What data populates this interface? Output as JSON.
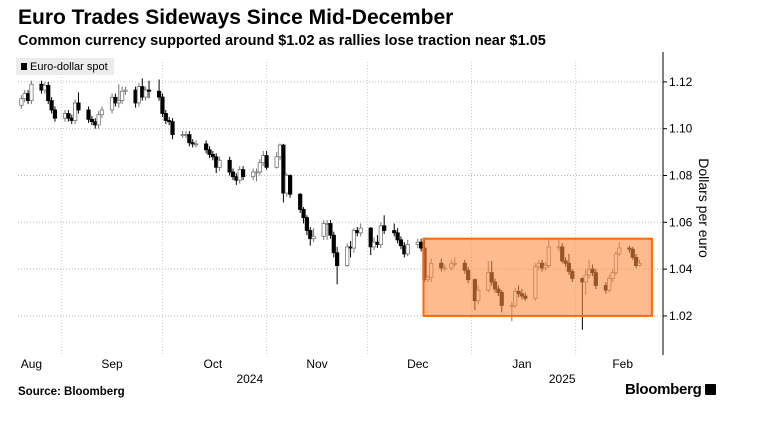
{
  "header": {
    "title": "Euro Trades Sideways Since Mid-December",
    "subtitle": "Common currency supported around $1.02 as rallies lose traction near $1.05"
  },
  "footer": {
    "source": "Source: Bloomberg",
    "logo": "Bloomberg"
  },
  "chart_data": {
    "type": "candlestick",
    "legend": {
      "label": "Euro-dollar spot",
      "placement": "top-left"
    },
    "ylabel": "Dollars per euro",
    "y_axis_side": "right",
    "ylim": [
      1.0033,
      1.1285
    ],
    "yticks": [
      "1.02",
      "1.04",
      "1.06",
      "1.08",
      "1.10",
      "1.12"
    ],
    "ytick_values": [
      1.02,
      1.04,
      1.06,
      1.08,
      1.1,
      1.12
    ],
    "xlim": [
      "2024-08-19",
      "2025-02-27"
    ],
    "xticks": [
      {
        "label": "Aug",
        "date": "2024-08-23"
      },
      {
        "label": "Sep",
        "date": "2024-09-16"
      },
      {
        "label": "Oct",
        "date": "2024-10-16"
      },
      {
        "label": "Nov",
        "date": "2024-11-16"
      },
      {
        "label": "Dec",
        "date": "2024-12-16"
      },
      {
        "label": "Jan",
        "date": "2025-01-16"
      },
      {
        "label": "Feb",
        "date": "2025-02-15"
      }
    ],
    "year_labels": [
      {
        "label": "2024",
        "date": "2024-10-27"
      },
      {
        "label": "2025",
        "date": "2025-01-28"
      }
    ],
    "month_boundaries": [
      "2024-09-01",
      "2024-10-01",
      "2024-11-01",
      "2024-12-01",
      "2025-01-01",
      "2025-02-01"
    ],
    "grid": true,
    "colors": {
      "up": "#ffffff",
      "up_outline": "#777777",
      "down": "#000000",
      "highlight_fill": "#ff8c42",
      "highlight_stroke": "#ff6a00"
    },
    "highlight_range": {
      "x": [
        "2024-12-18",
        "2025-02-24"
      ],
      "y": [
        1.02,
        1.053
      ]
    },
    "candles_fields": [
      "date",
      "open",
      "high",
      "low",
      "close"
    ],
    "candles": [
      [
        "2024-08-20",
        1.11,
        1.1143,
        1.1085,
        1.1128
      ],
      [
        "2024-08-21",
        1.1128,
        1.1165,
        1.1113,
        1.115
      ],
      [
        "2024-08-22",
        1.115,
        1.1165,
        1.1105,
        1.112
      ],
      [
        "2024-08-23",
        1.112,
        1.1205,
        1.1105,
        1.119
      ],
      [
        "2024-08-26",
        1.119,
        1.1205,
        1.115,
        1.1165
      ],
      [
        "2024-08-27",
        1.1165,
        1.12,
        1.115,
        1.1185
      ],
      [
        "2024-08-28",
        1.1185,
        1.12,
        1.1105,
        1.112
      ],
      [
        "2024-08-29",
        1.112,
        1.1135,
        1.1065,
        1.108
      ],
      [
        "2024-08-30",
        1.108,
        1.1095,
        1.103,
        1.1045
      ],
      [
        "2024-09-02",
        1.1045,
        1.108,
        1.103,
        1.1065
      ],
      [
        "2024-09-03",
        1.1065,
        1.108,
        1.103,
        1.1045
      ],
      [
        "2024-09-04",
        1.1045,
        1.106,
        1.102,
        1.1035
      ],
      [
        "2024-09-05",
        1.1035,
        1.1125,
        1.102,
        1.111
      ],
      [
        "2024-09-06",
        1.111,
        1.1155,
        1.1065,
        1.108
      ],
      [
        "2024-09-09",
        1.108,
        1.1095,
        1.1025,
        1.104
      ],
      [
        "2024-09-10",
        1.104,
        1.1055,
        1.1015,
        1.103
      ],
      [
        "2024-09-11",
        1.103,
        1.1045,
        1.1,
        1.1016
      ],
      [
        "2024-09-12",
        1.1016,
        1.1075,
        1.1,
        1.106
      ],
      [
        "2024-09-13",
        1.106,
        1.1095,
        1.1045,
        1.108
      ],
      [
        "2024-09-16",
        1.108,
        1.115,
        1.1065,
        1.1134
      ],
      [
        "2024-09-17",
        1.1134,
        1.115,
        1.1095,
        1.111
      ],
      [
        "2024-09-18",
        1.111,
        1.119,
        1.109,
        1.112
      ],
      [
        "2024-09-19",
        1.112,
        1.118,
        1.1105,
        1.116
      ],
      [
        "2024-09-20",
        1.116,
        1.118,
        1.1145,
        1.1165
      ],
      [
        "2024-09-23",
        1.1165,
        1.118,
        1.109,
        1.111
      ],
      [
        "2024-09-24",
        1.111,
        1.1195,
        1.1095,
        1.118
      ],
      [
        "2024-09-25",
        1.118,
        1.1215,
        1.112,
        1.1135
      ],
      [
        "2024-09-26",
        1.1135,
        1.118,
        1.112,
        1.1165
      ],
      [
        "2024-09-27",
        1.1165,
        1.1205,
        1.113,
        1.116
      ],
      [
        "2024-09-30",
        1.116,
        1.121,
        1.112,
        1.1135
      ],
      [
        "2024-10-01",
        1.1135,
        1.115,
        1.105,
        1.1065
      ],
      [
        "2024-10-02",
        1.1065,
        1.108,
        1.102,
        1.1035
      ],
      [
        "2024-10-03",
        1.1035,
        1.105,
        1.1015,
        1.103
      ],
      [
        "2024-10-04",
        1.103,
        1.1045,
        1.0955,
        1.0975
      ],
      [
        "2024-10-07",
        1.0975,
        1.099,
        1.096,
        1.0975
      ],
      [
        "2024-10-08",
        1.0975,
        1.099,
        1.096,
        1.0975
      ],
      [
        "2024-10-09",
        1.0975,
        1.099,
        1.0925,
        1.094
      ],
      [
        "2024-10-10",
        1.094,
        1.0955,
        1.092,
        1.0935
      ],
      [
        "2024-10-11",
        1.0935,
        1.095,
        1.092,
        1.0935
      ],
      [
        "2024-10-14",
        1.0935,
        1.095,
        1.0895,
        1.091
      ],
      [
        "2024-10-15",
        1.091,
        1.0925,
        1.0875,
        1.089
      ],
      [
        "2024-10-16",
        1.089,
        1.0905,
        1.0865,
        1.088
      ],
      [
        "2024-10-17",
        1.088,
        1.0895,
        1.081,
        1.0835
      ],
      [
        "2024-10-18",
        1.0835,
        1.088,
        1.082,
        1.0865
      ],
      [
        "2024-10-21",
        1.0865,
        1.088,
        1.08,
        1.0815
      ],
      [
        "2024-10-22",
        1.0815,
        1.083,
        1.078,
        1.0795
      ],
      [
        "2024-10-23",
        1.0795,
        1.081,
        1.076,
        1.078
      ],
      [
        "2024-10-24",
        1.078,
        1.084,
        1.0765,
        1.0825
      ],
      [
        "2024-10-25",
        1.0825,
        1.084,
        1.078,
        1.0795
      ],
      [
        "2024-10-28",
        1.0795,
        1.083,
        1.078,
        1.0815
      ],
      [
        "2024-10-29",
        1.0815,
        1.083,
        1.0775,
        1.0815
      ],
      [
        "2024-10-30",
        1.0815,
        1.087,
        1.08,
        1.0855
      ],
      [
        "2024-10-31",
        1.0855,
        1.0905,
        1.084,
        1.0885
      ],
      [
        "2024-11-01",
        1.0885,
        1.0905,
        1.0825,
        1.0835
      ],
      [
        "2024-11-04",
        1.0835,
        1.09,
        1.083,
        1.088
      ],
      [
        "2024-11-05",
        1.088,
        1.0937,
        1.0865,
        1.093
      ],
      [
        "2024-11-06",
        1.093,
        1.0935,
        1.0685,
        1.0725
      ],
      [
        "2024-11-07",
        1.0725,
        1.081,
        1.071,
        1.08
      ],
      [
        "2024-11-08",
        1.08,
        1.0805,
        1.0705,
        1.072
      ],
      [
        "2024-11-11",
        1.072,
        1.0725,
        1.064,
        1.0655
      ],
      [
        "2024-11-12",
        1.0655,
        1.0665,
        1.0595,
        1.062
      ],
      [
        "2024-11-13",
        1.062,
        1.063,
        1.0545,
        1.0565
      ],
      [
        "2024-11-14",
        1.0565,
        1.058,
        1.05,
        1.053
      ],
      [
        "2024-11-15",
        1.053,
        1.0575,
        1.0515,
        1.054
      ],
      [
        "2024-11-18",
        1.054,
        1.061,
        1.0525,
        1.0595
      ],
      [
        "2024-11-19",
        1.0595,
        1.061,
        1.0525,
        1.0595
      ],
      [
        "2024-11-20",
        1.0595,
        1.061,
        1.053,
        1.0545
      ],
      [
        "2024-11-21",
        1.0545,
        1.056,
        1.045,
        1.047
      ],
      [
        "2024-11-22",
        1.047,
        1.0495,
        1.0335,
        1.0415
      ],
      [
        "2024-11-25",
        1.0415,
        1.051,
        1.041,
        1.0495
      ],
      [
        "2024-11-26",
        1.0495,
        1.052,
        1.045,
        1.049
      ],
      [
        "2024-11-27",
        1.049,
        1.0575,
        1.047,
        1.0565
      ],
      [
        "2024-11-28",
        1.0565,
        1.058,
        1.054,
        1.0555
      ],
      [
        "2024-11-29",
        1.0555,
        1.0595,
        1.054,
        1.0575
      ],
      [
        "2024-12-02",
        1.0575,
        1.058,
        1.046,
        1.0495
      ],
      [
        "2024-12-03",
        1.0495,
        1.0535,
        1.048,
        1.0515
      ],
      [
        "2024-12-04",
        1.0515,
        1.0545,
        1.049,
        1.0505
      ],
      [
        "2024-12-05",
        1.0505,
        1.06,
        1.049,
        1.0585
      ],
      [
        "2024-12-06",
        1.0585,
        1.063,
        1.055,
        1.0565
      ],
      [
        "2024-12-09",
        1.0565,
        1.0595,
        1.054,
        1.0555
      ],
      [
        "2024-12-10",
        1.0555,
        1.0575,
        1.051,
        1.0525
      ],
      [
        "2024-12-11",
        1.0525,
        1.054,
        1.0485,
        1.05
      ],
      [
        "2024-12-12",
        1.05,
        1.0515,
        1.045,
        1.0465
      ],
      [
        "2024-12-13",
        1.0465,
        1.0525,
        1.0455,
        1.0505
      ],
      [
        "2024-12-16",
        1.0505,
        1.053,
        1.049,
        1.0515
      ],
      [
        "2024-12-17",
        1.0515,
        1.053,
        1.0475,
        1.049
      ],
      [
        "2024-12-18",
        1.049,
        1.053,
        1.0345,
        1.0355
      ],
      [
        "2024-12-19",
        1.0355,
        1.0375,
        1.0345,
        1.0365
      ],
      [
        "2024-12-20",
        1.0365,
        1.0445,
        1.0345,
        1.0425
      ],
      [
        "2024-12-23",
        1.0425,
        1.0445,
        1.039,
        1.0405
      ],
      [
        "2024-12-24",
        1.0405,
        1.042,
        1.039,
        1.0405
      ],
      [
        "2024-12-26",
        1.0405,
        1.044,
        1.0395,
        1.0423
      ],
      [
        "2024-12-27",
        1.0423,
        1.045,
        1.041,
        1.0425
      ],
      [
        "2024-12-30",
        1.0425,
        1.044,
        1.038,
        1.0395
      ],
      [
        "2024-12-31",
        1.0395,
        1.041,
        1.034,
        1.0355
      ],
      [
        "2025-01-02",
        1.0355,
        1.036,
        1.0225,
        1.0265
      ],
      [
        "2025-01-03",
        1.0265,
        1.033,
        1.025,
        1.031
      ],
      [
        "2025-01-06",
        1.031,
        1.0435,
        1.03,
        1.0385
      ],
      [
        "2025-01-07",
        1.0385,
        1.0435,
        1.033,
        1.0345
      ],
      [
        "2025-01-08",
        1.0345,
        1.036,
        1.03,
        1.0315
      ],
      [
        "2025-01-09",
        1.0315,
        1.033,
        1.0285,
        1.03
      ],
      [
        "2025-01-10",
        1.03,
        1.031,
        1.0215,
        1.0245
      ],
      [
        "2025-01-13",
        1.0245,
        1.026,
        1.0178,
        1.0245
      ],
      [
        "2025-01-14",
        1.0245,
        1.032,
        1.0235,
        1.0305
      ],
      [
        "2025-01-15",
        1.0305,
        1.033,
        1.028,
        1.0295
      ],
      [
        "2025-01-16",
        1.0295,
        1.0315,
        1.027,
        1.0285
      ],
      [
        "2025-01-17",
        1.0285,
        1.03,
        1.0265,
        1.0275
      ],
      [
        "2025-01-20",
        1.0275,
        1.0425,
        1.0265,
        1.041
      ],
      [
        "2025-01-21",
        1.041,
        1.044,
        1.0395,
        1.0425
      ],
      [
        "2025-01-22",
        1.0425,
        1.044,
        1.039,
        1.0405
      ],
      [
        "2025-01-23",
        1.0405,
        1.043,
        1.0395,
        1.0415
      ],
      [
        "2025-01-24",
        1.0415,
        1.0525,
        1.0405,
        1.0495
      ],
      [
        "2025-01-27",
        1.0495,
        1.053,
        1.0475,
        1.0495
      ],
      [
        "2025-01-28",
        1.0495,
        1.051,
        1.0425,
        1.0435
      ],
      [
        "2025-01-29",
        1.0435,
        1.045,
        1.041,
        1.0425
      ],
      [
        "2025-01-30",
        1.0425,
        1.0465,
        1.0375,
        1.039
      ],
      [
        "2025-01-31",
        1.039,
        1.04,
        1.0345,
        1.036
      ],
      [
        "2025-02-03",
        1.036,
        1.0365,
        1.0141,
        1.0345
      ],
      [
        "2025-02-04",
        1.0345,
        1.04,
        1.029,
        1.0375
      ],
      [
        "2025-02-05",
        1.0375,
        1.044,
        1.036,
        1.04
      ],
      [
        "2025-02-06",
        1.04,
        1.042,
        1.037,
        1.0385
      ],
      [
        "2025-02-07",
        1.0385,
        1.04,
        1.0315,
        1.033
      ],
      [
        "2025-02-10",
        1.033,
        1.0345,
        1.0295,
        1.031
      ],
      [
        "2025-02-11",
        1.031,
        1.0375,
        1.03,
        1.036
      ],
      [
        "2025-02-12",
        1.036,
        1.04,
        1.0345,
        1.0385
      ],
      [
        "2025-02-13",
        1.0385,
        1.0475,
        1.0375,
        1.0465
      ],
      [
        "2025-02-14",
        1.0465,
        1.0515,
        1.0455,
        1.049
      ],
      [
        "2025-02-17",
        1.049,
        1.05,
        1.047,
        1.0485
      ],
      [
        "2025-02-18",
        1.0485,
        1.0495,
        1.044,
        1.045
      ],
      [
        "2025-02-19",
        1.045,
        1.0465,
        1.0405,
        1.0415
      ],
      [
        "2025-02-20",
        1.0415,
        1.044,
        1.041,
        1.0425
      ]
    ]
  }
}
